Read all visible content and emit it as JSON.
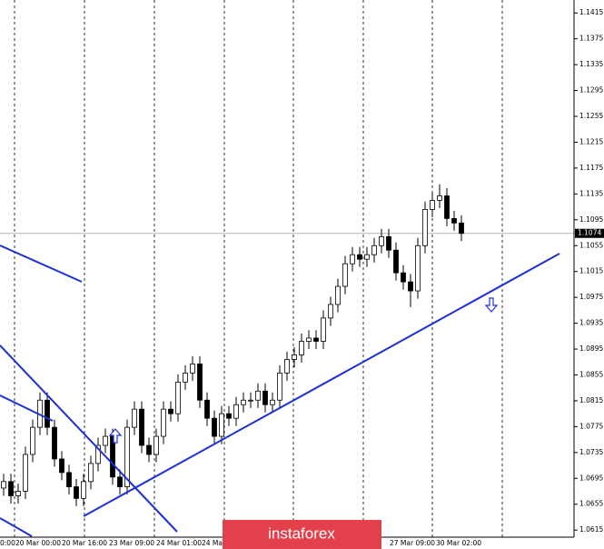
{
  "chart_data": {
    "type": "candlestick",
    "open": [
      1.068,
      1.069,
      1.0668,
      1.0675,
      1.0732,
      1.0774,
      1.0816,
      1.0774,
      1.0725,
      1.0704,
      1.0682,
      1.0664,
      1.069,
      1.0718,
      1.0746,
      1.076,
      1.0697,
      1.0682,
      1.0774,
      1.0802,
      1.0746,
      1.0732,
      1.076,
      1.0802,
      1.0795,
      1.0844,
      1.0858,
      1.0872,
      1.0816,
      1.0788,
      1.076,
      1.0795,
      1.0788,
      1.0809,
      1.0816,
      1.0816,
      1.083,
      1.0809,
      1.0816,
      1.0858,
      1.0879,
      1.0886,
      1.0907,
      1.0912,
      1.0907,
      1.0943,
      1.0964,
      1.0992,
      1.1027,
      1.1041,
      1.1034,
      1.1041,
      1.1055,
      1.1069,
      1.1048,
      1.1013,
      1.0999,
      1.0985,
      1.1055,
      1.1111,
      1.1125,
      1.1132,
      1.1097,
      1.109
    ],
    "high": [
      1.0702,
      1.0702,
      1.0687,
      1.0744,
      1.0786,
      1.0828,
      1.0828,
      1.0786,
      1.0737,
      1.0716,
      1.0694,
      1.0702,
      1.073,
      1.0758,
      1.0772,
      1.0772,
      1.0709,
      1.0786,
      1.0814,
      1.0814,
      1.0758,
      1.0772,
      1.0814,
      1.0814,
      1.0856,
      1.087,
      1.0884,
      1.0884,
      1.0828,
      1.08,
      1.0807,
      1.0807,
      1.0821,
      1.0828,
      1.0828,
      1.0842,
      1.0842,
      1.0828,
      1.087,
      1.0891,
      1.0898,
      1.0919,
      1.0924,
      1.0924,
      1.0955,
      1.0976,
      1.1004,
      1.1039,
      1.1053,
      1.1053,
      1.1053,
      1.1067,
      1.1081,
      1.1081,
      1.106,
      1.1025,
      1.1011,
      1.1067,
      1.1123,
      1.1137,
      1.115,
      1.1144,
      1.1109,
      1.1102
    ],
    "low": [
      1.0668,
      1.0656,
      1.0656,
      1.0663,
      1.072,
      1.0762,
      1.0762,
      1.0713,
      1.0692,
      1.067,
      1.0652,
      1.0652,
      1.0678,
      1.0706,
      1.0734,
      1.0685,
      1.067,
      1.067,
      1.0762,
      1.0734,
      1.072,
      1.072,
      1.0748,
      1.0783,
      1.0783,
      1.0832,
      1.0846,
      1.0804,
      1.0776,
      1.0748,
      1.0748,
      1.0776,
      1.0776,
      1.0797,
      1.0804,
      1.0804,
      1.0797,
      1.0797,
      1.0804,
      1.0846,
      1.0867,
      1.0874,
      1.0895,
      1.0895,
      1.0895,
      1.0931,
      1.0952,
      1.098,
      1.1015,
      1.1022,
      1.1022,
      1.1029,
      1.1043,
      1.1036,
      1.1001,
      1.0987,
      1.096,
      1.0973,
      1.1043,
      1.1099,
      1.1113,
      1.1085,
      1.1078,
      1.1062
    ],
    "close": [
      1.069,
      1.0668,
      1.0675,
      1.0732,
      1.0774,
      1.0816,
      1.0774,
      1.0725,
      1.0704,
      1.0682,
      1.0664,
      1.069,
      1.0718,
      1.0746,
      1.076,
      1.0697,
      1.0682,
      1.0774,
      1.0802,
      1.0746,
      1.0732,
      1.076,
      1.0802,
      1.0795,
      1.0844,
      1.0858,
      1.0872,
      1.0816,
      1.0788,
      1.076,
      1.0795,
      1.0788,
      1.0809,
      1.0816,
      1.0816,
      1.083,
      1.0809,
      1.0816,
      1.0858,
      1.0879,
      1.0886,
      1.0907,
      1.0912,
      1.0907,
      1.0943,
      1.0964,
      1.0992,
      1.1027,
      1.1041,
      1.1034,
      1.1041,
      1.1055,
      1.1069,
      1.1048,
      1.1013,
      1.0999,
      1.0985,
      1.1055,
      1.1111,
      1.1125,
      1.1132,
      1.1097,
      1.109,
      1.1074
    ],
    "ylim": [
      1.0604,
      1.1435
    ],
    "yticks": [
      1.1415,
      1.1375,
      1.1335,
      1.1295,
      1.1255,
      1.1215,
      1.1175,
      1.1135,
      1.1095,
      1.1055,
      1.1015,
      1.0975,
      1.0935,
      1.0895,
      1.0855,
      1.0815,
      1.0775,
      1.0735,
      1.0695,
      1.0655,
      1.0615
    ],
    "xtick_labels": [
      "0:00",
      "20 Mar 00:00",
      "20 Mar 16:00",
      "23 Mar 09:00",
      "24 Mar 01:00",
      "24 Ma",
      "27 Mar 09:00",
      "30 Mar 02:00"
    ],
    "current_price": 1.1074,
    "grid": true,
    "watermark": "instaforex"
  }
}
